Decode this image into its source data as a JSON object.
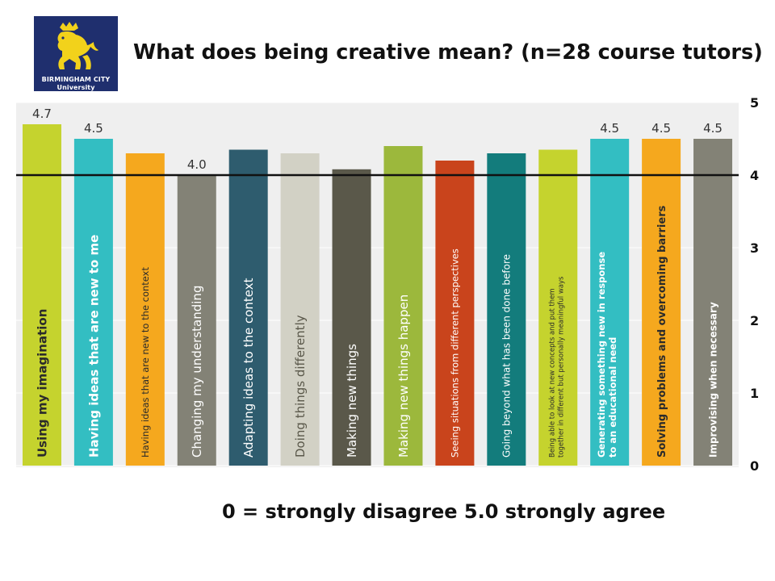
{
  "logo": {
    "line1": "BIRMINGHAM CITY",
    "line2": "University",
    "background_color": "#1f2f6e",
    "emblem_color": "#f2d21b",
    "emblem": "lion-icon"
  },
  "title": "What does being creative mean? (n=28 course tutors)",
  "footnote": "0 = strongly disagree  5.0 strongly agree",
  "chart_data": {
    "type": "bar",
    "title": "What does being creative mean? (n=28 course tutors)",
    "xlabel": "",
    "ylabel": "",
    "ylim": [
      0,
      5
    ],
    "y_ticks": [
      "0",
      "1",
      "2",
      "3",
      "4",
      "5"
    ],
    "grid": true,
    "legend": "none",
    "reference_line": 4,
    "categories": [
      "Using my imagination",
      "Having ideas that are new to me",
      "Having ideas that are new to the context",
      "Changing my understanding",
      "Adapting ideas to the context",
      "Doing  things differently",
      "Making new things",
      "Making new things happen",
      "Seeing situations from different  perspectives",
      "Going beyond what has been done before",
      "Being able to look at new concepts and put them together in different but personally meaningful ways",
      "Generating something new in response to an educational need",
      "Solving problems and overcoming barriers",
      "Improvising  when necessary"
    ],
    "values": [
      4.7,
      4.5,
      4.3,
      4.0,
      4.35,
      4.3,
      4.08,
      4.4,
      4.2,
      4.3,
      4.35,
      4.5,
      4.5,
      4.5
    ],
    "data_labels": [
      "4.7",
      "4.5",
      "",
      "4.0",
      "",
      "",
      "",
      "",
      "",
      "",
      "",
      "4.5",
      "4.5",
      "4.5"
    ],
    "colors": [
      "#c5d32e",
      "#33bec2",
      "#f5a81e",
      "#838276",
      "#2e5c6e",
      "#d2d1c5",
      "#5a584a",
      "#9cb83c",
      "#c9441c",
      "#137c7c",
      "#c5d32e",
      "#33bec2",
      "#f5a81e",
      "#838276"
    ]
  }
}
